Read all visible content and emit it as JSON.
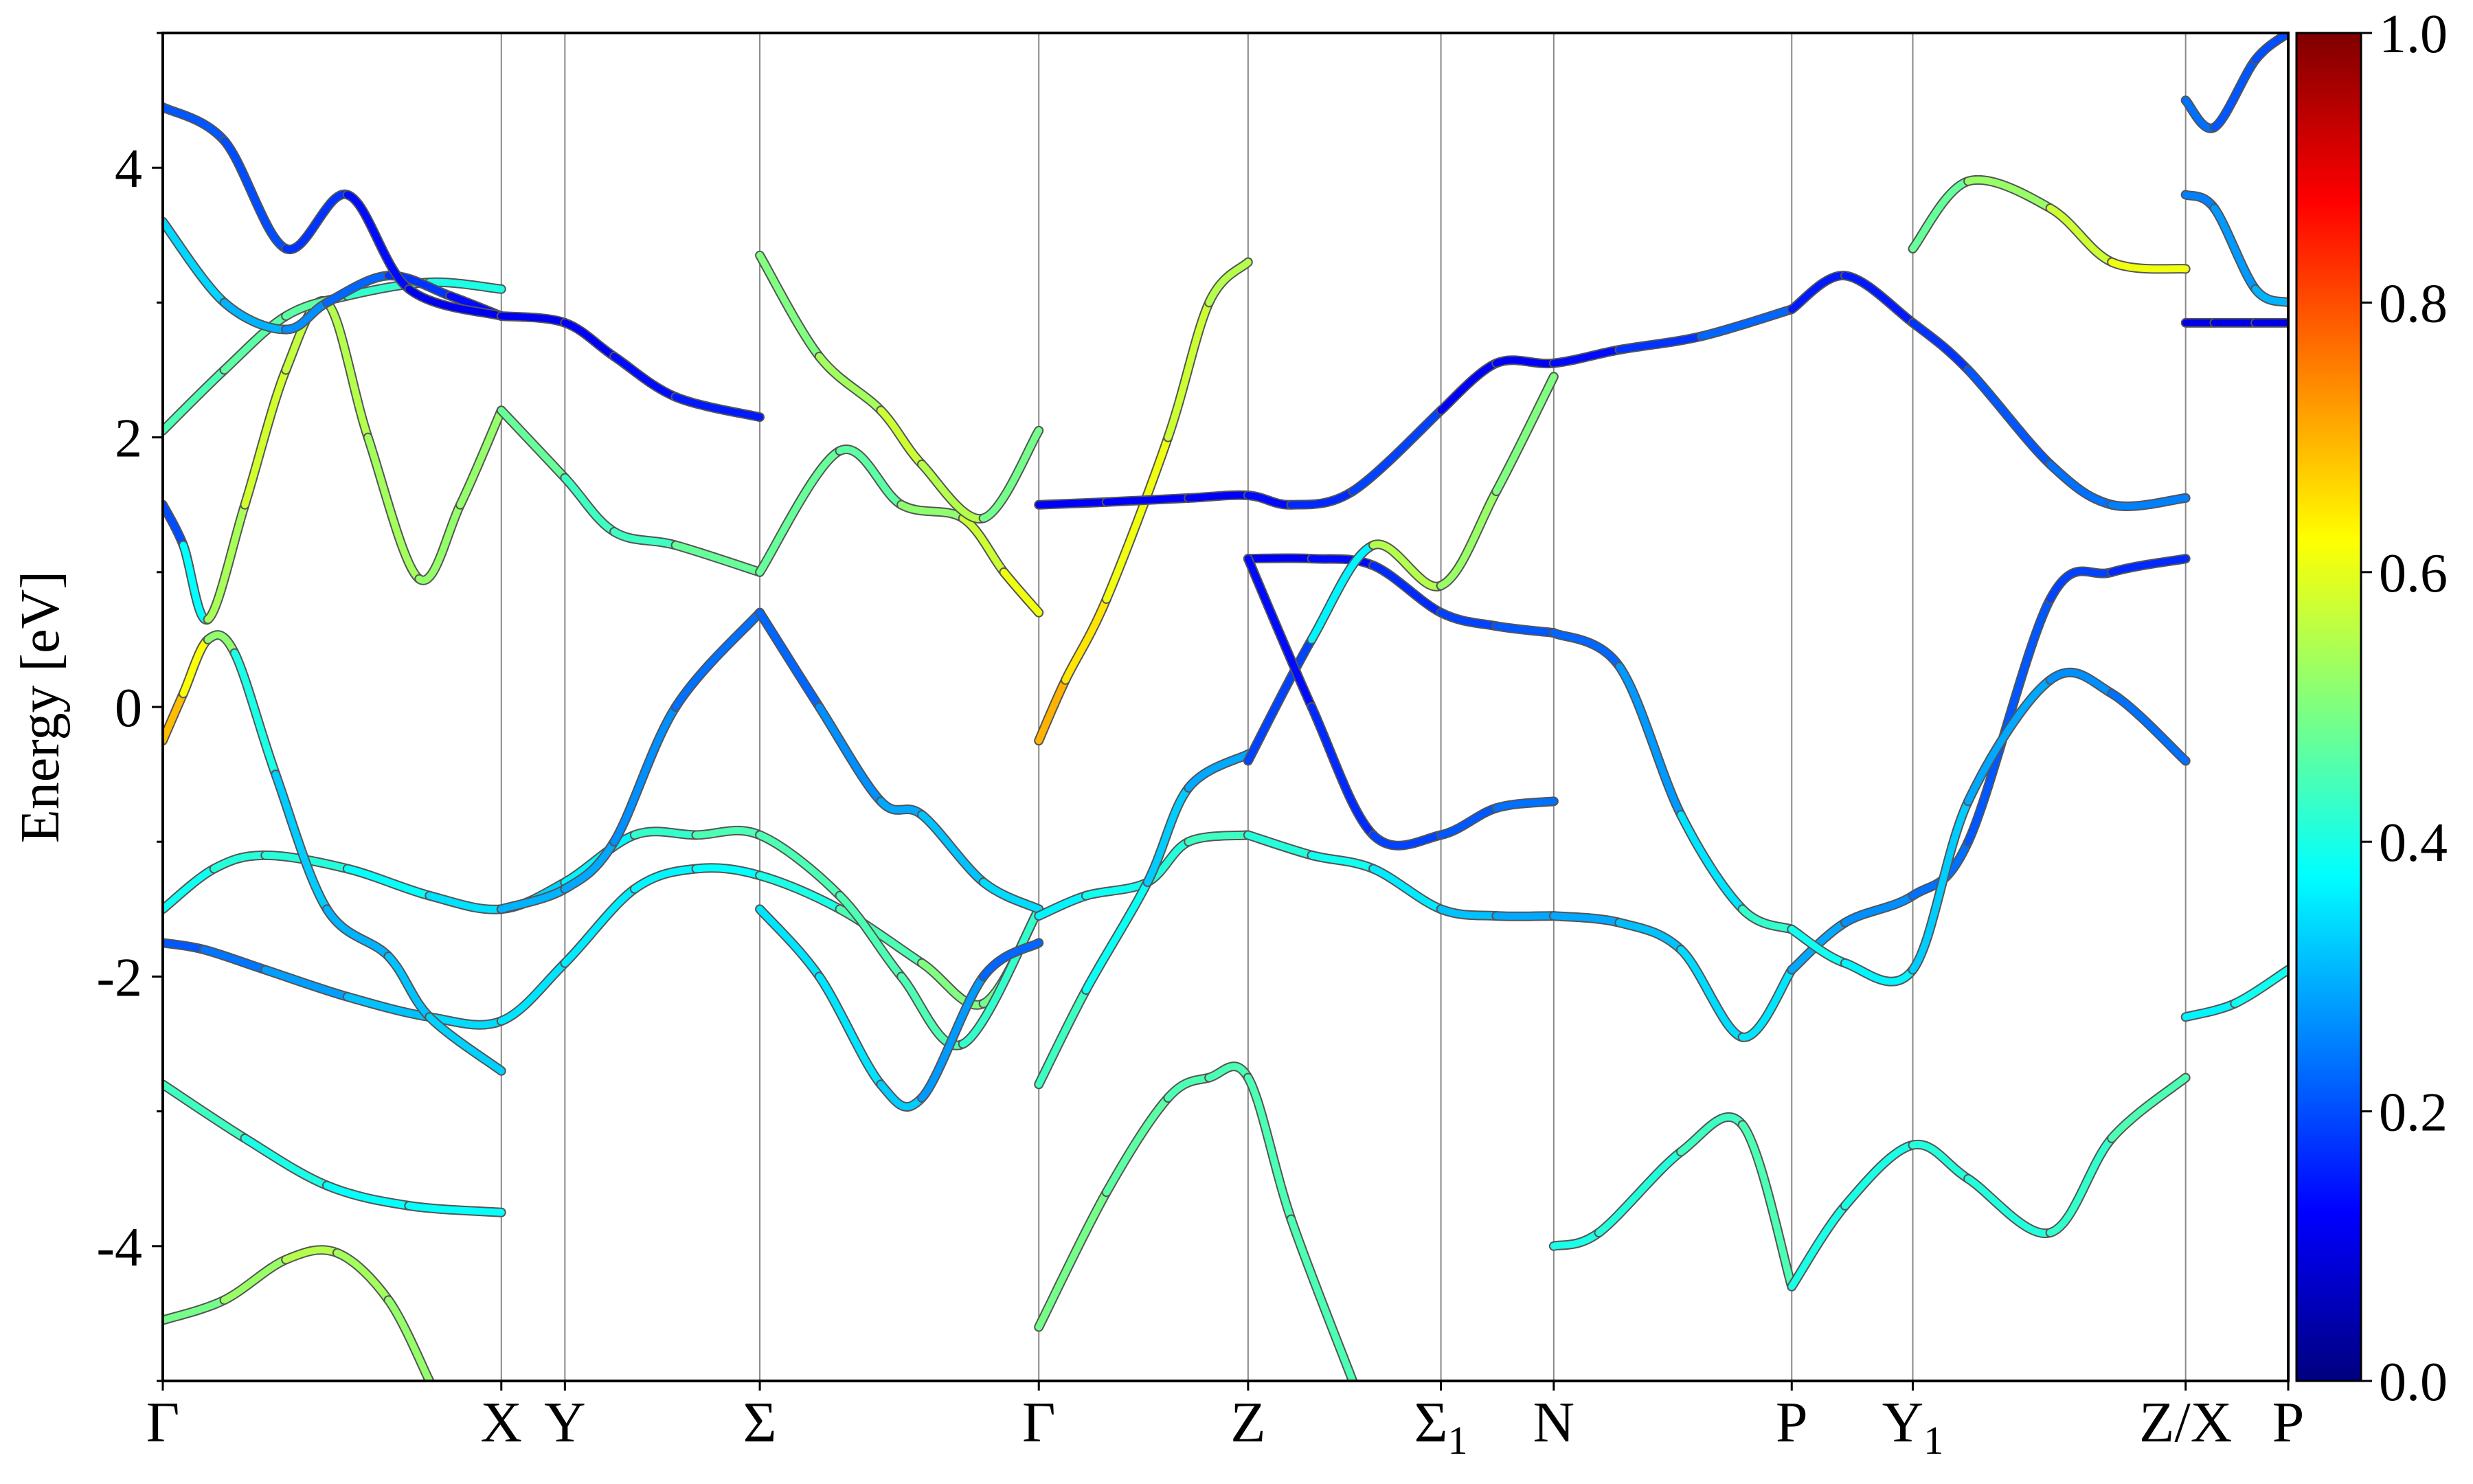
{
  "chart_data": {
    "type": "line",
    "title": "",
    "ylabel": "Energy [eV]",
    "xlabel": "",
    "ylim": [
      -5,
      5
    ],
    "yticks": [
      -4,
      -2,
      0,
      2,
      4
    ],
    "xlim": [
      0,
      10.36
    ],
    "kpoints": [
      {
        "label": "Γ",
        "sub": "",
        "x": 0.0
      },
      {
        "label": "X",
        "sub": "",
        "x": 1.65
      },
      {
        "label": "Y",
        "sub": "",
        "x": 1.96
      },
      {
        "label": "Σ",
        "sub": "",
        "x": 2.91
      },
      {
        "label": "Γ",
        "sub": "",
        "x": 4.27
      },
      {
        "label": "Z",
        "sub": "",
        "x": 5.29
      },
      {
        "label": "Σ",
        "sub": "1",
        "x": 6.23
      },
      {
        "label": "N",
        "sub": "",
        "x": 6.78
      },
      {
        "label": "P",
        "sub": "",
        "x": 7.94
      },
      {
        "label": "Y",
        "sub": "1",
        "x": 8.53
      },
      {
        "label": "Z/X",
        "sub": "",
        "x": 9.86
      },
      {
        "label": "P",
        "sub": "",
        "x": 10.36
      }
    ],
    "colorbar": {
      "colormap": "jet",
      "range": [
        0.0,
        1.0
      ],
      "ticks": [
        "0.0",
        "0.2",
        "0.4",
        "0.6",
        "0.8",
        "1.0"
      ]
    },
    "series": [
      {
        "x": [
          0,
          0.2,
          0.5,
          0.9,
          1.3,
          1.65,
          1.96,
          2.3,
          2.6,
          2.91,
          3.3,
          3.7,
          4.0,
          4.27
        ],
        "y": [
          -1.75,
          -1.8,
          -1.95,
          -2.15,
          -2.3,
          -2.33,
          -1.9,
          -1.35,
          -1.2,
          -1.25,
          -1.5,
          -1.9,
          -2.2,
          -1.5
        ],
        "c": [
          0.2,
          0.22,
          0.26,
          0.3,
          0.33,
          0.35,
          0.35,
          0.36,
          0.37,
          0.38,
          0.42,
          0.48,
          0.52,
          0.45
        ]
      },
      {
        "x": [
          0,
          0.25,
          0.5,
          0.9,
          1.3,
          1.65,
          1.96,
          2.3,
          2.6,
          2.91,
          3.3,
          3.6,
          3.9,
          4.27
        ],
        "y": [
          -1.5,
          -1.2,
          -1.1,
          -1.2,
          -1.4,
          -1.5,
          -1.3,
          -0.95,
          -0.95,
          -0.95,
          -1.4,
          -2.0,
          -2.5,
          -1.5
        ],
        "c": [
          0.38,
          0.4,
          0.42,
          0.4,
          0.36,
          0.33,
          0.33,
          0.4,
          0.45,
          0.45,
          0.45,
          0.45,
          0.45,
          0.4
        ]
      },
      {
        "x": [
          0,
          0.1,
          0.22,
          0.35,
          0.55,
          0.8,
          1.1,
          1.3,
          1.65
        ],
        "y": [
          -0.25,
          0.1,
          0.5,
          0.4,
          -0.5,
          -1.5,
          -1.85,
          -2.3,
          -2.7
        ],
        "c": [
          0.72,
          0.66,
          0.58,
          0.45,
          0.35,
          0.3,
          0.3,
          0.33,
          0.33
        ]
      },
      {
        "x": [
          0,
          0.1,
          0.22,
          0.4,
          0.6,
          0.8,
          1.0,
          1.25,
          1.45,
          1.65
        ],
        "y": [
          1.5,
          1.2,
          0.65,
          1.5,
          2.5,
          3.0,
          2.0,
          0.95,
          1.5,
          2.2
        ],
        "c": [
          0.15,
          0.25,
          0.5,
          0.58,
          0.58,
          0.55,
          0.55,
          0.52,
          0.52,
          0.52
        ]
      },
      {
        "x": [
          0,
          0.3,
          0.6,
          0.9,
          1.3,
          1.65
        ],
        "y": [
          2.05,
          2.5,
          2.9,
          3.05,
          3.15,
          3.1
        ],
        "c": [
          0.45,
          0.45,
          0.48,
          0.45,
          0.4,
          0.4
        ]
      },
      {
        "x": [
          0,
          0.3,
          0.6,
          0.8,
          1.1,
          1.4,
          1.65
        ],
        "y": [
          3.6,
          3.0,
          2.8,
          3.0,
          3.2,
          3.05,
          2.9
        ],
        "c": [
          0.35,
          0.32,
          0.28,
          0.25,
          0.2,
          0.15,
          0.12
        ]
      },
      {
        "x": [
          0,
          0.3,
          0.6,
          0.9,
          1.2,
          1.65
        ],
        "y": [
          4.45,
          4.2,
          3.4,
          3.8,
          3.1,
          2.9
        ],
        "c": [
          0.22,
          0.2,
          0.2,
          0.15,
          0.12,
          0.1
        ]
      },
      {
        "x": [
          0,
          0.4,
          0.8,
          1.2,
          1.65
        ],
        "y": [
          -2.8,
          -3.2,
          -3.55,
          -3.7,
          -3.75
        ],
        "c": [
          0.45,
          0.42,
          0.38,
          0.38,
          0.38
        ]
      },
      {
        "x": [
          0,
          0.3,
          0.6,
          0.85,
          1.1,
          1.3
        ],
        "y": [
          -4.55,
          -4.4,
          -4.1,
          -4.05,
          -4.4,
          -5.0
        ],
        "c": [
          0.48,
          0.5,
          0.55,
          0.55,
          0.52,
          0.52
        ]
      },
      {
        "x": [
          1.65,
          1.96,
          2.2,
          2.5,
          2.91
        ],
        "y": [
          -1.5,
          -1.35,
          -1.0,
          0.0,
          0.7
        ],
        "c": [
          0.3,
          0.3,
          0.28,
          0.25,
          0.22
        ]
      },
      {
        "x": [
          1.65,
          1.96,
          2.2,
          2.5,
          2.91
        ],
        "y": [
          2.9,
          2.85,
          2.6,
          2.3,
          2.15
        ],
        "c": [
          0.1,
          0.12,
          0.12,
          0.15,
          0.15
        ]
      },
      {
        "x": [
          1.65,
          1.96,
          2.2,
          2.5,
          2.91
        ],
        "y": [
          2.2,
          1.7,
          1.3,
          1.2,
          1.0
        ],
        "c": [
          0.5,
          0.45,
          0.42,
          0.45,
          0.5
        ]
      },
      {
        "x": [
          2.91,
          3.2,
          3.5,
          3.7,
          4.0,
          4.27
        ],
        "y": [
          0.7,
          0.0,
          -0.7,
          -0.8,
          -1.3,
          -1.5
        ],
        "c": [
          0.2,
          0.25,
          0.28,
          0.3,
          0.33,
          0.35
        ]
      },
      {
        "x": [
          2.91,
          3.2,
          3.5,
          3.7,
          4.0,
          4.27
        ],
        "y": [
          -1.5,
          -2.0,
          -2.8,
          -2.9,
          -2.0,
          -1.75
        ],
        "c": [
          0.35,
          0.35,
          0.35,
          0.3,
          0.25,
          0.2
        ]
      },
      {
        "x": [
          2.91,
          3.3,
          3.6,
          3.9,
          4.1,
          4.27
        ],
        "y": [
          1.0,
          1.9,
          1.5,
          1.4,
          1.0,
          0.7
        ],
        "c": [
          0.5,
          0.45,
          0.48,
          0.55,
          0.6,
          0.62
        ]
      },
      {
        "x": [
          2.91,
          3.2,
          3.5,
          3.7,
          4.0,
          4.27
        ],
        "y": [
          3.35,
          2.6,
          2.2,
          1.8,
          1.4,
          2.05
        ],
        "c": [
          0.48,
          0.52,
          0.55,
          0.6,
          0.5,
          0.48
        ]
      },
      {
        "x": [
          4.27,
          4.4,
          4.6,
          4.9,
          5.1,
          5.29
        ],
        "y": [
          -0.25,
          0.2,
          0.8,
          2.0,
          3.0,
          3.3
        ],
        "c": [
          0.72,
          0.68,
          0.62,
          0.6,
          0.55,
          0.55
        ]
      },
      {
        "x": [
          4.27,
          4.6,
          5.0,
          5.29,
          5.5,
          5.8,
          6.23
        ],
        "y": [
          1.5,
          1.52,
          1.55,
          1.57,
          1.5,
          1.6,
          2.2
        ],
        "c": [
          0.12,
          0.12,
          0.12,
          0.12,
          0.15,
          0.18,
          0.2
        ]
      },
      {
        "x": [
          4.27,
          4.5,
          4.8,
          5.0,
          5.29
        ],
        "y": [
          -1.55,
          -1.4,
          -1.3,
          -1.0,
          -0.95
        ],
        "c": [
          0.35,
          0.38,
          0.4,
          0.42,
          0.45
        ]
      },
      {
        "x": [
          4.27,
          4.5,
          4.8,
          5.0,
          5.29
        ],
        "y": [
          -2.8,
          -2.1,
          -1.3,
          -0.6,
          -0.35
        ],
        "c": [
          0.45,
          0.42,
          0.35,
          0.3,
          0.28
        ]
      },
      {
        "x": [
          4.27,
          4.6,
          4.9,
          5.1,
          5.29,
          5.5,
          5.8
        ],
        "y": [
          -4.6,
          -3.6,
          -2.9,
          -2.75,
          -2.75,
          -3.8,
          -5.0
        ],
        "c": [
          0.5,
          0.48,
          0.45,
          0.45,
          0.45,
          0.45,
          0.45
        ]
      },
      {
        "x": [
          5.29,
          5.6,
          5.9,
          6.23,
          6.5,
          6.78
        ],
        "y": [
          1.1,
          1.1,
          1.05,
          0.7,
          0.6,
          0.55
        ],
        "c": [
          0.12,
          0.12,
          0.15,
          0.18,
          0.2,
          0.22
        ]
      },
      {
        "x": [
          5.29,
          5.6,
          5.9,
          6.23,
          6.5,
          6.78
        ],
        "y": [
          -0.95,
          -1.1,
          -1.2,
          -1.5,
          -1.55,
          -1.55
        ],
        "c": [
          0.42,
          0.4,
          0.38,
          0.33,
          0.3,
          0.28
        ]
      },
      {
        "x": [
          5.29,
          5.6,
          5.9,
          6.23,
          6.5,
          6.78
        ],
        "y": [
          -0.4,
          0.5,
          1.2,
          0.9,
          1.6,
          2.45
        ],
        "c": [
          0.2,
          0.18,
          0.55,
          0.55,
          0.5,
          0.5
        ]
      },
      {
        "x": [
          5.29,
          5.6,
          5.9,
          6.23,
          6.5,
          6.78
        ],
        "y": [
          1.1,
          0.0,
          -0.95,
          -0.95,
          -0.75,
          -0.7
        ],
        "c": [
          0.12,
          0.15,
          0.18,
          0.2,
          0.22,
          0.25
        ]
      },
      {
        "x": [
          6.23,
          6.5,
          6.78,
          7.1,
          7.5,
          7.94
        ],
        "y": [
          2.2,
          2.55,
          2.55,
          2.65,
          2.75,
          2.95
        ],
        "c": [
          0.12,
          0.12,
          0.12,
          0.15,
          0.2,
          0.25
        ]
      },
      {
        "x": [
          6.78,
          7.0,
          7.4,
          7.7,
          7.94
        ],
        "y": [
          -4.0,
          -3.9,
          -3.3,
          -3.1,
          -4.3
        ],
        "c": [
          0.4,
          0.4,
          0.42,
          0.45,
          0.45
        ]
      },
      {
        "x": [
          6.78,
          7.1,
          7.4,
          7.7,
          7.94
        ],
        "y": [
          -1.55,
          -1.6,
          -1.8,
          -2.45,
          -1.95
        ],
        "c": [
          0.28,
          0.3,
          0.33,
          0.35,
          0.35
        ]
      },
      {
        "x": [
          6.78,
          7.1,
          7.4,
          7.7,
          7.94
        ],
        "y": [
          0.55,
          0.3,
          -0.8,
          -1.5,
          -1.65
        ],
        "c": [
          0.2,
          0.25,
          0.3,
          0.4,
          0.45
        ]
      },
      {
        "x": [
          7.94,
          8.2,
          8.53,
          8.8,
          9.2,
          9.5,
          9.86
        ],
        "y": [
          2.95,
          3.2,
          2.85,
          2.5,
          1.8,
          1.5,
          1.55
        ],
        "c": [
          0.15,
          0.15,
          0.15,
          0.2,
          0.22,
          0.25,
          0.25
        ]
      },
      {
        "x": [
          7.94,
          8.2,
          8.53,
          8.8,
          9.2,
          9.5,
          9.86
        ],
        "y": [
          -1.95,
          -1.6,
          -1.4,
          -1.0,
          0.8,
          1.0,
          1.1
        ],
        "c": [
          0.3,
          0.28,
          0.25,
          0.22,
          0.2,
          0.18,
          0.15
        ]
      },
      {
        "x": [
          7.94,
          8.2,
          8.53,
          8.8,
          9.2,
          9.5,
          9.86
        ],
        "y": [
          -1.65,
          -1.9,
          -1.95,
          -0.7,
          0.2,
          0.1,
          -0.4
        ],
        "c": [
          0.4,
          0.38,
          0.35,
          0.3,
          0.28,
          0.25,
          0.22
        ]
      },
      {
        "x": [
          7.94,
          8.2,
          8.53,
          8.8,
          9.2,
          9.5,
          9.86
        ],
        "y": [
          -4.3,
          -3.7,
          -3.25,
          -3.5,
          -3.9,
          -3.2,
          -2.75
        ],
        "c": [
          0.4,
          0.4,
          0.4,
          0.42,
          0.4,
          0.45,
          0.45
        ]
      },
      {
        "x": [
          8.53,
          8.8,
          9.2,
          9.5,
          9.86
        ],
        "y": [
          3.4,
          3.9,
          3.7,
          3.3,
          3.25
        ],
        "c": [
          0.45,
          0.5,
          0.55,
          0.6,
          0.62
        ]
      },
      {
        "x": [
          9.86,
          10.0,
          10.2,
          10.36
        ],
        "y": [
          2.85,
          2.85,
          2.85,
          2.85
        ],
        "c": [
          0.1,
          0.1,
          0.1,
          0.1
        ]
      },
      {
        "x": [
          9.86,
          10.0,
          10.2,
          10.36
        ],
        "y": [
          4.5,
          4.3,
          4.8,
          5.0
        ],
        "c": [
          0.25,
          0.22,
          0.2,
          0.2
        ]
      },
      {
        "x": [
          9.86,
          10.0,
          10.2,
          10.36
        ],
        "y": [
          3.8,
          3.7,
          3.1,
          3.0
        ],
        "c": [
          0.25,
          0.25,
          0.3,
          0.3
        ]
      },
      {
        "x": [
          9.86,
          10.1,
          10.36
        ],
        "y": [
          -2.3,
          -2.2,
          -1.95
        ],
        "c": [
          0.35,
          0.38,
          0.4
        ]
      }
    ]
  }
}
